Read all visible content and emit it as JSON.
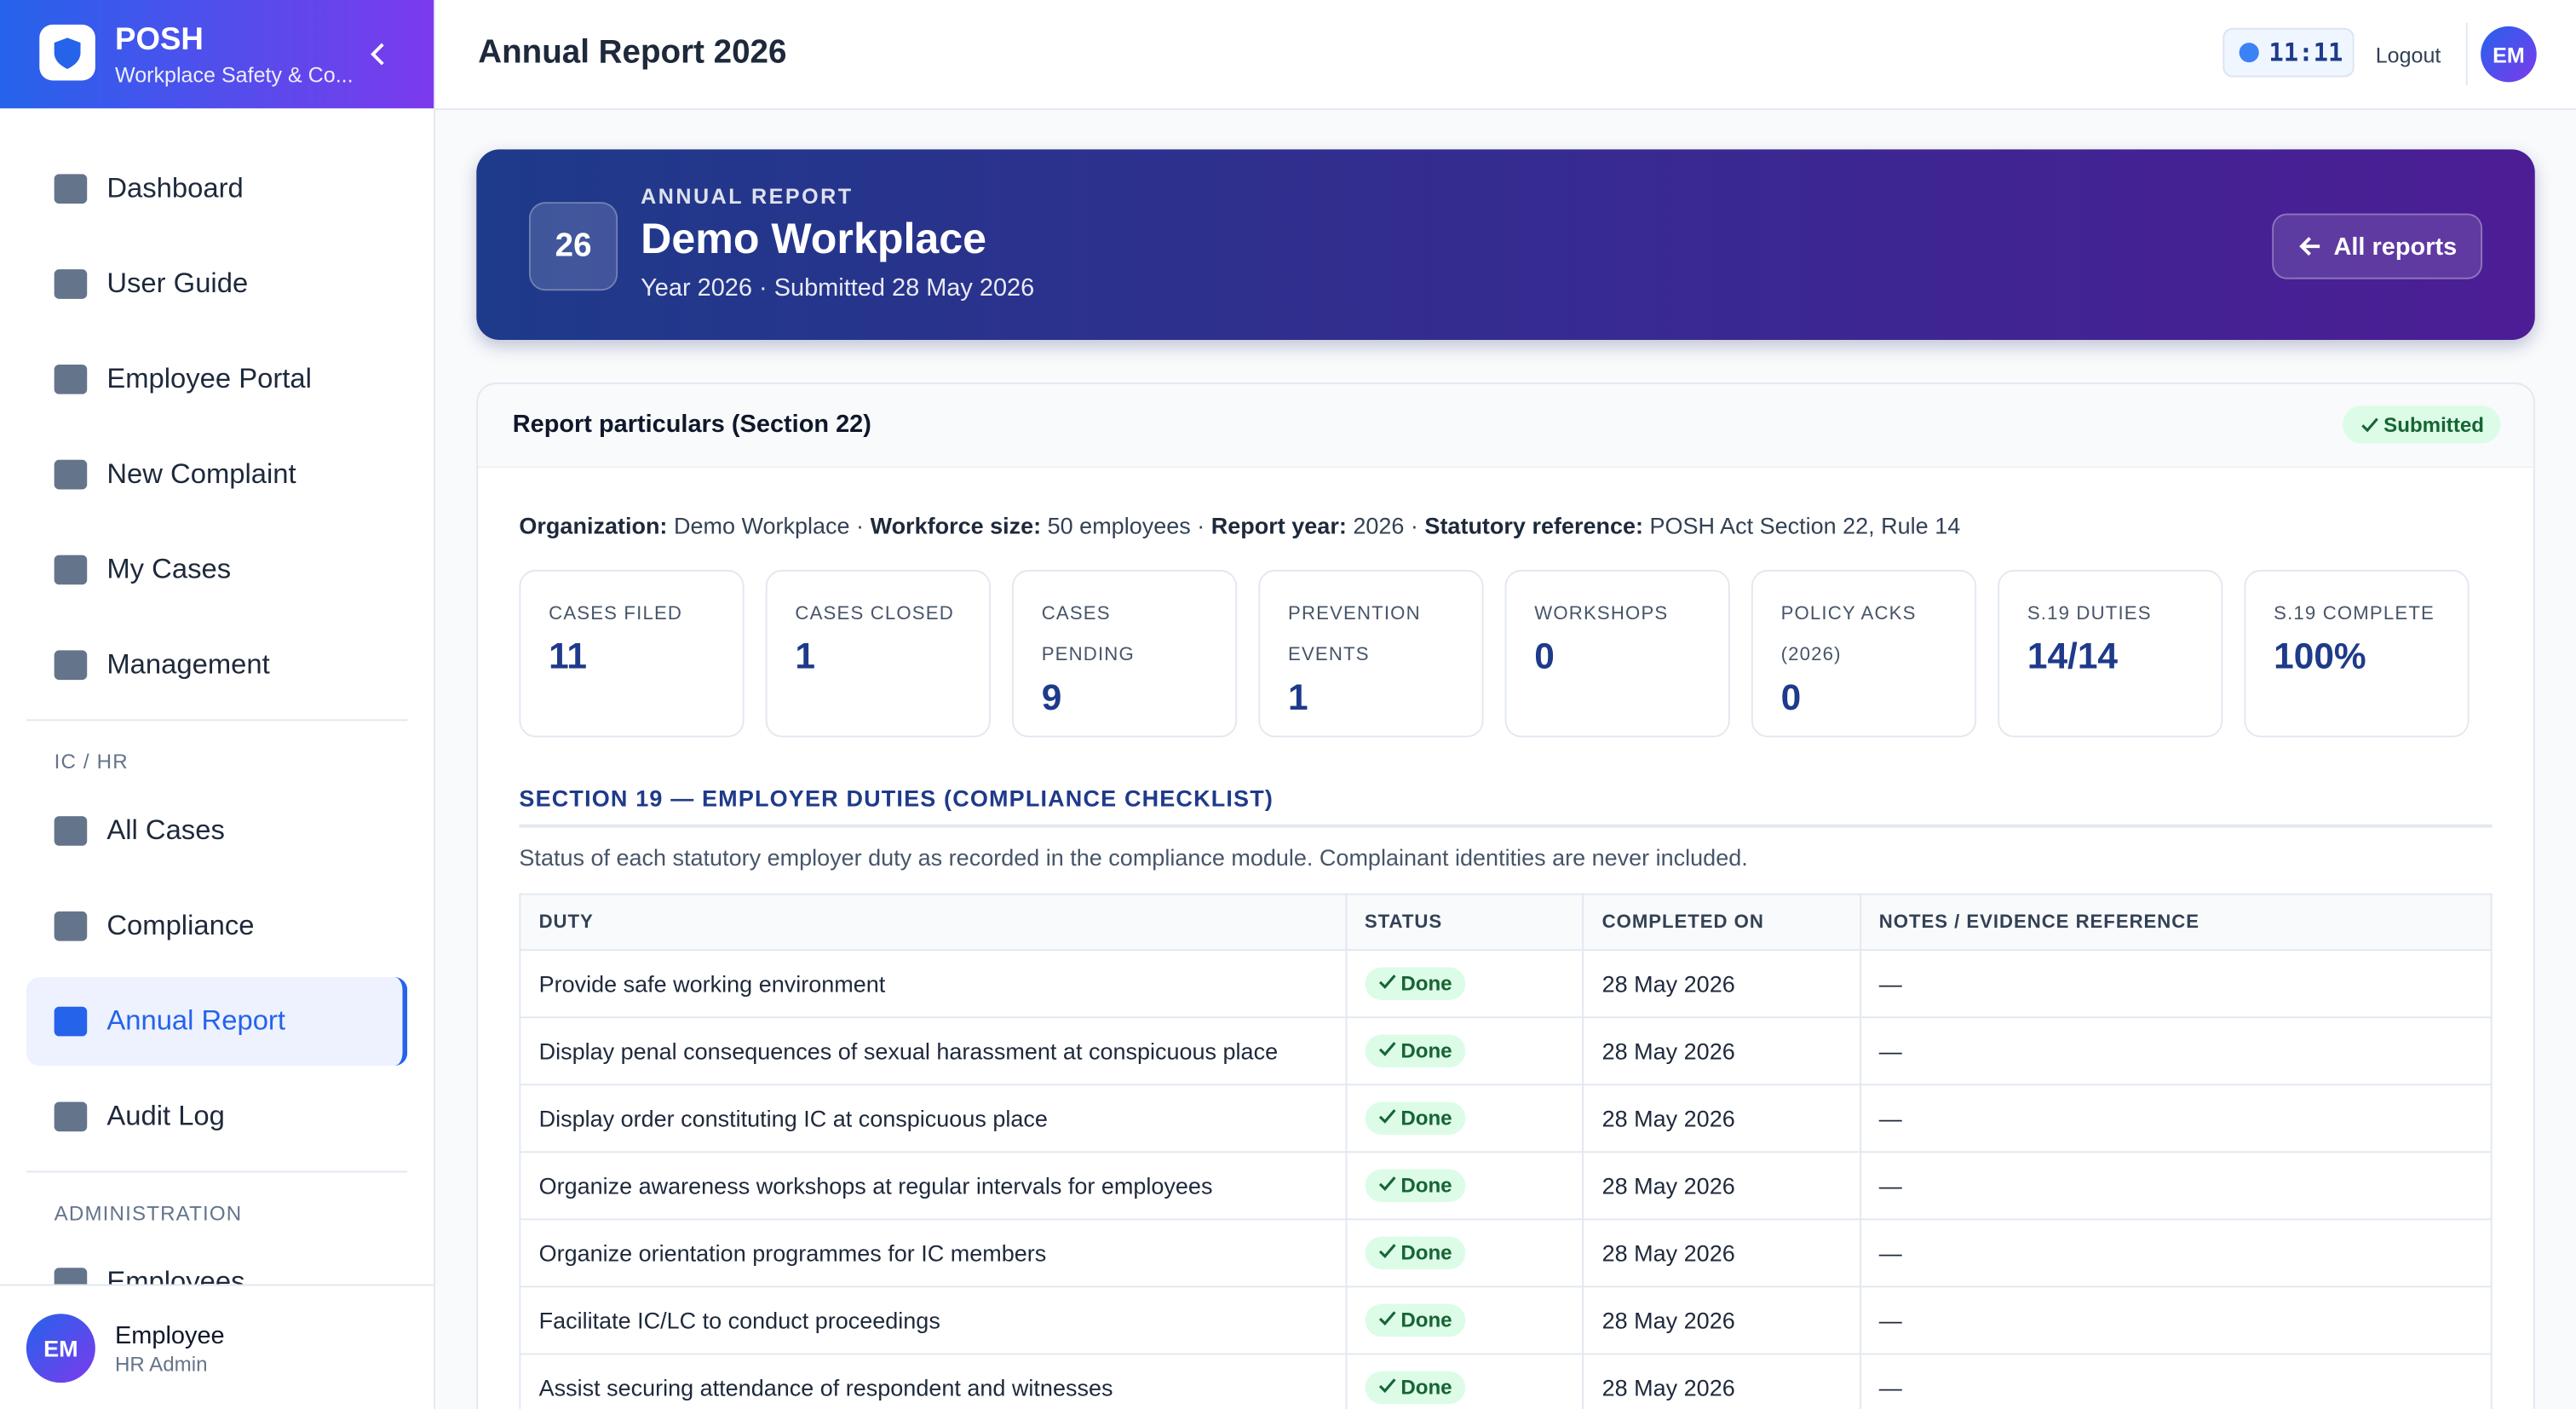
{
  "sidebar": {
    "brand": {
      "title": "POSH",
      "subtitle": "Workplace Safety & Co..."
    },
    "nav": [
      "Dashboard",
      "User Guide",
      "Employee Portal",
      "New Complaint",
      "My Cases",
      "Management"
    ],
    "ic_label": "IC / HR",
    "ic_items": [
      "All Cases",
      "Compliance",
      "Annual Report",
      "Audit Log"
    ],
    "admin_label": "ADMINISTRATION",
    "admin_items": [
      "Employees"
    ],
    "user": {
      "initials": "EM",
      "name": "Employee",
      "role": "HR Admin"
    }
  },
  "header": {
    "title": "Annual Report 2026",
    "time": "11:11",
    "logout": "Logout",
    "initials": "EM"
  },
  "banner": {
    "badge": "26",
    "kicker": "ANNUAL REPORT",
    "workplace": "Demo Workplace",
    "subtitle": "Year 2026 · Submitted 28 May 2026",
    "button": "All reports"
  },
  "report": {
    "title": "Report particulars (Section 22)",
    "status": "Submitted",
    "separator": "·",
    "details": [
      {
        "label": "Organization:",
        "value": "Demo Workplace"
      },
      {
        "label": "Workforce size:",
        "value": "50 employees"
      },
      {
        "label": "Report year:",
        "value": "2026"
      },
      {
        "label": "Statutory reference:",
        "value": "POSH Act Section 22, Rule 14"
      }
    ],
    "stats": [
      {
        "label": "CASES FILED",
        "value": 11
      },
      {
        "label": "CASES CLOSED",
        "value": 1
      },
      {
        "label": "CASES PENDING",
        "value": 9
      },
      {
        "label": "PREVENTION EVENTS",
        "value": 1
      },
      {
        "label": "WORKSHOPS",
        "value": 0
      },
      {
        "label": "POLICY ACKS (2026)",
        "value": 0
      },
      {
        "label": "S.19 DUTIES",
        "value": "14/14"
      },
      {
        "label": "S.19 COMPLETE",
        "value": "100%"
      }
    ]
  },
  "checklist": {
    "title": "SECTION 19 — EMPLOYER DUTIES (COMPLIANCE CHECKLIST)",
    "description": "Status of each statutory employer duty as recorded in the compliance module. Complainant identities are never included.",
    "table": {
      "columns": [
        "DUTY",
        "STATUS",
        "COMPLETED ON",
        "NOTES / EVIDENCE REFERENCE"
      ],
      "rows": [
        [
          "Provide safe working environment",
          "Done",
          "28 May 2026",
          "—"
        ],
        [
          "Display penal consequences of sexual harassment at conspicuous place",
          "Done",
          "28 May 2026",
          "—"
        ],
        [
          "Display order constituting IC at conspicuous place",
          "Done",
          "28 May 2026",
          "—"
        ],
        [
          "Organize awareness workshops at regular intervals for employees",
          "Done",
          "28 May 2026",
          "—"
        ],
        [
          "Organize orientation programmes for IC members",
          "Done",
          "28 May 2026",
          "—"
        ],
        [
          "Facilitate IC/LC to conduct proceedings",
          "Done",
          "28 May 2026",
          "—"
        ],
        [
          "Assist securing attendance of respondent and witnesses",
          "Done",
          "28 May 2026",
          "—"
        ]
      ]
    }
  }
}
